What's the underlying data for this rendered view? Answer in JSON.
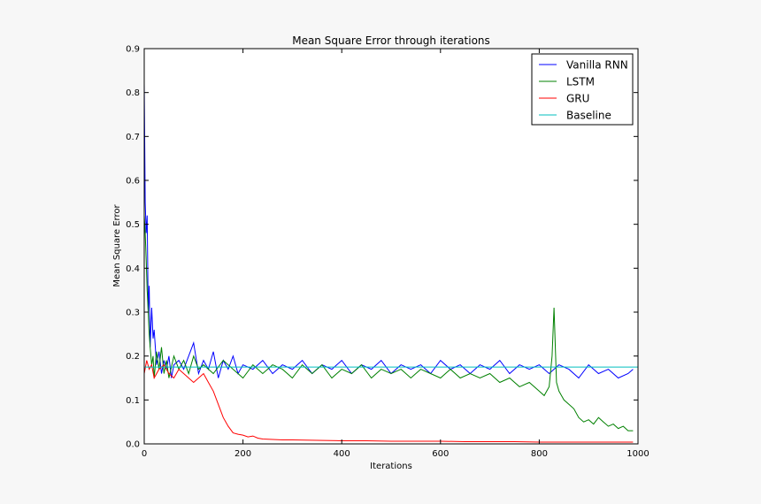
{
  "chart_data": {
    "type": "line",
    "title": "Mean Square Error through iterations",
    "xlabel": "Iterations",
    "ylabel": "Mean Square Error",
    "xlim": [
      0,
      1000
    ],
    "ylim": [
      0,
      0.9
    ],
    "xticks": [
      0,
      200,
      400,
      600,
      800,
      1000
    ],
    "xtick_labels": [
      "0",
      "200",
      "400",
      "600",
      "800",
      "1000"
    ],
    "yticks": [
      0,
      0.1,
      0.2,
      0.3,
      0.4,
      0.5,
      0.6,
      0.7,
      0.8,
      0.9
    ],
    "ytick_labels": [
      "0.0",
      "0.1",
      "0.2",
      "0.3",
      "0.4",
      "0.5",
      "0.6",
      "0.7",
      "0.8",
      "0.9"
    ],
    "grid": false,
    "legend": "upper-right",
    "series": [
      {
        "name": "Vanilla RNN",
        "color": "#0000ff",
        "x": [
          0,
          2,
          4,
          6,
          8,
          10,
          12,
          15,
          18,
          20,
          25,
          30,
          35,
          40,
          45,
          50,
          55,
          60,
          70,
          80,
          90,
          100,
          110,
          120,
          130,
          140,
          150,
          160,
          170,
          180,
          190,
          200,
          220,
          240,
          260,
          280,
          300,
          320,
          340,
          360,
          380,
          400,
          420,
          440,
          460,
          480,
          500,
          520,
          540,
          560,
          580,
          600,
          620,
          640,
          660,
          680,
          700,
          720,
          740,
          760,
          780,
          800,
          820,
          840,
          860,
          880,
          900,
          920,
          940,
          960,
          980,
          990
        ],
        "values": [
          0.82,
          0.55,
          0.48,
          0.52,
          0.3,
          0.36,
          0.22,
          0.31,
          0.24,
          0.26,
          0.18,
          0.21,
          0.16,
          0.19,
          0.17,
          0.2,
          0.15,
          0.18,
          0.19,
          0.17,
          0.2,
          0.23,
          0.16,
          0.19,
          0.17,
          0.21,
          0.15,
          0.19,
          0.17,
          0.2,
          0.16,
          0.18,
          0.17,
          0.19,
          0.16,
          0.18,
          0.17,
          0.19,
          0.16,
          0.18,
          0.17,
          0.19,
          0.16,
          0.18,
          0.17,
          0.19,
          0.16,
          0.18,
          0.17,
          0.18,
          0.16,
          0.19,
          0.17,
          0.18,
          0.16,
          0.18,
          0.17,
          0.19,
          0.16,
          0.18,
          0.17,
          0.18,
          0.16,
          0.18,
          0.17,
          0.15,
          0.18,
          0.16,
          0.17,
          0.15,
          0.16,
          0.17
        ]
      },
      {
        "name": "LSTM",
        "color": "#008000",
        "x": [
          0,
          2,
          4,
          6,
          8,
          10,
          12,
          15,
          18,
          20,
          25,
          30,
          35,
          40,
          45,
          50,
          60,
          70,
          80,
          90,
          100,
          110,
          120,
          140,
          160,
          180,
          200,
          220,
          240,
          260,
          280,
          300,
          320,
          340,
          360,
          380,
          400,
          420,
          440,
          460,
          480,
          500,
          520,
          540,
          560,
          580,
          600,
          620,
          640,
          660,
          680,
          700,
          720,
          740,
          760,
          780,
          800,
          810,
          820,
          826,
          830,
          835,
          840,
          850,
          860,
          870,
          880,
          890,
          900,
          910,
          920,
          930,
          940,
          950,
          960,
          970,
          980,
          990
        ],
        "values": [
          0.52,
          0.48,
          0.42,
          0.35,
          0.3,
          0.25,
          0.22,
          0.18,
          0.2,
          0.15,
          0.21,
          0.17,
          0.22,
          0.16,
          0.19,
          0.15,
          0.2,
          0.17,
          0.19,
          0.16,
          0.2,
          0.17,
          0.18,
          0.16,
          0.19,
          0.17,
          0.15,
          0.18,
          0.16,
          0.18,
          0.17,
          0.15,
          0.18,
          0.16,
          0.18,
          0.15,
          0.17,
          0.16,
          0.18,
          0.15,
          0.17,
          0.16,
          0.17,
          0.15,
          0.17,
          0.16,
          0.15,
          0.17,
          0.15,
          0.16,
          0.15,
          0.16,
          0.14,
          0.15,
          0.13,
          0.14,
          0.12,
          0.11,
          0.13,
          0.2,
          0.31,
          0.14,
          0.12,
          0.1,
          0.09,
          0.08,
          0.06,
          0.05,
          0.055,
          0.045,
          0.06,
          0.05,
          0.04,
          0.045,
          0.035,
          0.04,
          0.03,
          0.03
        ]
      },
      {
        "name": "GRU",
        "color": "#ff0000",
        "x": [
          0,
          5,
          10,
          15,
          20,
          30,
          40,
          50,
          60,
          70,
          80,
          90,
          100,
          110,
          120,
          130,
          140,
          150,
          160,
          170,
          180,
          190,
          200,
          210,
          220,
          230,
          240,
          260,
          280,
          300,
          350,
          400,
          450,
          500,
          550,
          600,
          650,
          700,
          750,
          800,
          850,
          900,
          950,
          990
        ],
        "values": [
          0.16,
          0.19,
          0.17,
          0.18,
          0.15,
          0.17,
          0.18,
          0.16,
          0.15,
          0.17,
          0.16,
          0.15,
          0.14,
          0.15,
          0.16,
          0.14,
          0.12,
          0.09,
          0.06,
          0.04,
          0.025,
          0.022,
          0.02,
          0.016,
          0.018,
          0.013,
          0.011,
          0.01,
          0.009,
          0.009,
          0.008,
          0.007,
          0.007,
          0.006,
          0.006,
          0.006,
          0.005,
          0.005,
          0.005,
          0.004,
          0.004,
          0.004,
          0.004,
          0.004
        ]
      },
      {
        "name": "Baseline",
        "color": "#00bfbf",
        "x": [
          0,
          1000
        ],
        "values": [
          0.175,
          0.175
        ]
      }
    ]
  }
}
